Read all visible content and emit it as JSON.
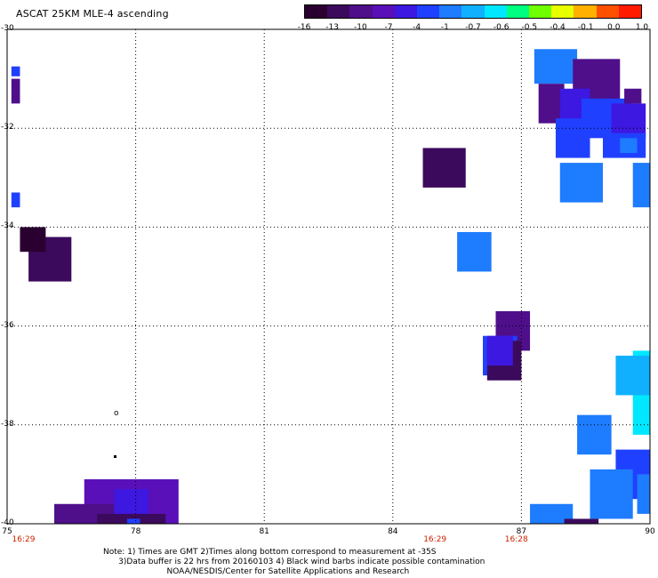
{
  "title": "ASCAT 25KM MLE-4 ascending",
  "colorbar": {
    "labels": [
      "-16",
      "-13",
      "-10",
      "-7",
      "-4",
      "-1",
      "-0.7",
      "-0.6",
      "-0.5",
      "-0.4",
      "-0.1",
      "0.0",
      "1.0"
    ],
    "colors": [
      "#2a0030",
      "#3c0a5c",
      "#4f0f8a",
      "#5a10b8",
      "#3c18e0",
      "#2040ff",
      "#1e7cff",
      "#10b0ff",
      "#00e8ff",
      "#00ff80",
      "#70ff00",
      "#e8ff00",
      "#ffb000",
      "#ff5000",
      "#ff1a00"
    ]
  },
  "lat_labels": [
    "-30",
    "-32",
    "-34",
    "-36",
    "-38",
    "-40"
  ],
  "lon_labels": [
    "75",
    "78",
    "81",
    "84",
    "87",
    "90"
  ],
  "time_stamps": [
    {
      "text": "16:29",
      "lon": 75.3
    },
    {
      "text": "16:29",
      "lon": 84.9
    },
    {
      "text": "16:28",
      "lon": 86.8
    }
  ],
  "notes": {
    "line1": "Note: 1) Times are GMT 2)Times along bottom correspond to measurement at -35S",
    "line2": "      3)Data buffer is 22 hrs from 20160103 4) Black wind barbs indicate possible contamination",
    "line3": "                         NOAA/NESDIS/Center for Satellite Applications and Research"
  },
  "map_extent": {
    "lon_min": 75,
    "lon_max": 90,
    "lat_min": -40,
    "lat_max": -30
  },
  "cells": [
    {
      "lon": 75.1,
      "lat": -31.0,
      "w": 0.2,
      "h": 0.5,
      "color": "#4f0f8a"
    },
    {
      "lon": 75.1,
      "lat": -30.75,
      "w": 0.2,
      "h": 0.2,
      "color": "#2040ff"
    },
    {
      "lon": 75.1,
      "lat": -33.3,
      "w": 0.2,
      "h": 0.3,
      "color": "#2040ff"
    },
    {
      "lon": 75.5,
      "lat": -34.2,
      "w": 1.0,
      "h": 0.9,
      "color": "#3c0a5c"
    },
    {
      "lon": 75.3,
      "lat": -34.0,
      "w": 0.6,
      "h": 0.5,
      "color": "#2a0030"
    },
    {
      "lon": 76.8,
      "lat": -39.1,
      "w": 2.2,
      "h": 1.2,
      "color": "#5a10b8"
    },
    {
      "lon": 76.1,
      "lat": -39.6,
      "w": 1.7,
      "h": 0.9,
      "color": "#4f0f8a"
    },
    {
      "lon": 77.5,
      "lat": -39.3,
      "w": 0.8,
      "h": 1.0,
      "color": "#3c18e0"
    },
    {
      "lon": 77.1,
      "lat": -39.8,
      "w": 1.6,
      "h": 0.5,
      "color": "#3c0a5c"
    },
    {
      "lon": 77.8,
      "lat": -39.9,
      "w": 0.3,
      "h": 0.3,
      "color": "#2040ff"
    },
    {
      "lon": 84.7,
      "lat": -32.4,
      "w": 1.0,
      "h": 0.8,
      "color": "#3c0a5c"
    },
    {
      "lon": 85.5,
      "lat": -34.1,
      "w": 0.8,
      "h": 0.8,
      "color": "#1e7cff"
    },
    {
      "lon": 86.4,
      "lat": -35.7,
      "w": 0.8,
      "h": 0.8,
      "color": "#4f0f8a"
    },
    {
      "lon": 86.1,
      "lat": -36.2,
      "w": 0.8,
      "h": 0.8,
      "color": "#2040ff"
    },
    {
      "lon": 86.2,
      "lat": -36.3,
      "w": 0.8,
      "h": 0.8,
      "color": "#3c0a5c"
    },
    {
      "lon": 86.2,
      "lat": -36.2,
      "w": 0.6,
      "h": 0.6,
      "color": "#3c18e0"
    },
    {
      "lon": 87.3,
      "lat": -30.4,
      "w": 1.0,
      "h": 0.7,
      "color": "#1e7cff"
    },
    {
      "lon": 88.2,
      "lat": -30.6,
      "w": 1.1,
      "h": 0.9,
      "color": "#4f0f8a"
    },
    {
      "lon": 87.4,
      "lat": -31.1,
      "w": 0.6,
      "h": 0.8,
      "color": "#4f0f8a"
    },
    {
      "lon": 87.9,
      "lat": -31.2,
      "w": 0.7,
      "h": 0.8,
      "color": "#3c18e0"
    },
    {
      "lon": 88.4,
      "lat": -31.4,
      "w": 1.2,
      "h": 0.8,
      "color": "#2040ff"
    },
    {
      "lon": 89.1,
      "lat": -31.5,
      "w": 0.8,
      "h": 0.7,
      "color": "#3c18e0"
    },
    {
      "lon": 89.4,
      "lat": -31.2,
      "w": 0.4,
      "h": 0.3,
      "color": "#4f0f8a"
    },
    {
      "lon": 87.8,
      "lat": -31.8,
      "w": 0.8,
      "h": 0.8,
      "color": "#2040ff"
    },
    {
      "lon": 88.9,
      "lat": -32.1,
      "w": 1.0,
      "h": 0.5,
      "color": "#2040ff"
    },
    {
      "lon": 89.3,
      "lat": -32.2,
      "w": 0.4,
      "h": 0.3,
      "color": "#1e7cff"
    },
    {
      "lon": 87.9,
      "lat": -32.7,
      "w": 1.0,
      "h": 0.8,
      "color": "#1e7cff"
    },
    {
      "lon": 89.6,
      "lat": -32.7,
      "w": 0.6,
      "h": 0.9,
      "color": "#1e7cff"
    },
    {
      "lon": 89.6,
      "lat": -36.5,
      "w": 0.8,
      "h": 1.7,
      "color": "#00e8ff"
    },
    {
      "lon": 89.2,
      "lat": -36.6,
      "w": 0.9,
      "h": 0.8,
      "color": "#10b0ff"
    },
    {
      "lon": 88.3,
      "lat": -37.8,
      "w": 0.8,
      "h": 0.8,
      "color": "#1e7cff"
    },
    {
      "lon": 89.2,
      "lat": -38.5,
      "w": 1.0,
      "h": 1.0,
      "color": "#2040ff"
    },
    {
      "lon": 88.6,
      "lat": -38.9,
      "w": 1.0,
      "h": 1.0,
      "color": "#1e7cff"
    },
    {
      "lon": 89.7,
      "lat": -39.0,
      "w": 0.7,
      "h": 0.8,
      "color": "#1e7cff"
    },
    {
      "lon": 87.2,
      "lat": -39.6,
      "w": 1.0,
      "h": 0.8,
      "color": "#1e7cff"
    },
    {
      "lon": 88.0,
      "lat": -39.9,
      "w": 0.8,
      "h": 0.3,
      "color": "#3c0a5c"
    }
  ]
}
